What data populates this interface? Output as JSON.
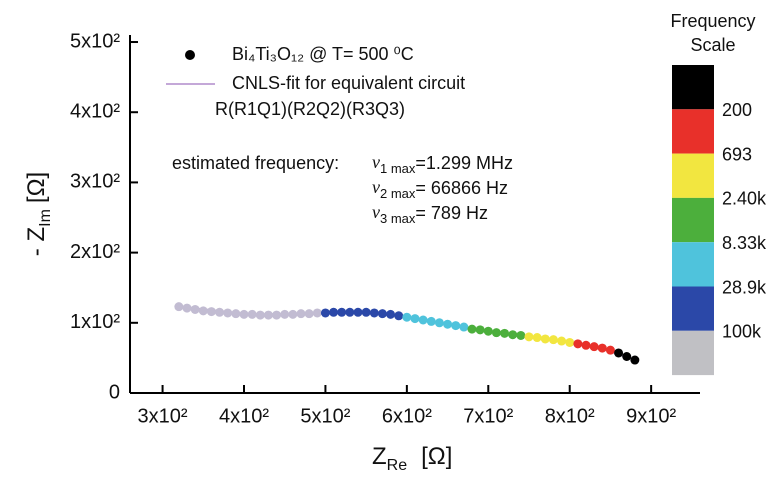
{
  "chart_data": {
    "type": "scatter",
    "xlabel": {
      "main": "Z",
      "sub": "Re",
      "unit": "[Ω]"
    },
    "ylabel": {
      "main": "- Z",
      "sub": "Im",
      "unit": "[Ω]"
    },
    "xlim": [
      260,
      960
    ],
    "ylim": [
      0,
      510
    ],
    "xticks": [
      {
        "value": 300,
        "label": "3x10²"
      },
      {
        "value": 400,
        "label": "4x10²"
      },
      {
        "value": 500,
        "label": "5x10²"
      },
      {
        "value": 600,
        "label": "6x10²"
      },
      {
        "value": 700,
        "label": "7x10²"
      },
      {
        "value": 800,
        "label": "8x10²"
      },
      {
        "value": 900,
        "label": "9x10²"
      }
    ],
    "yticks": [
      0,
      {
        "value": 100,
        "label": "1x10²"
      },
      {
        "value": 200,
        "label": "2x10²"
      },
      {
        "value": 300,
        "label": "3x10²"
      },
      {
        "value": 400,
        "label": "4x10²"
      },
      {
        "value": 500,
        "label": "5x10²"
      }
    ],
    "legend": {
      "marker_label": "Bi₄Ti₃O₁₂  @ T= 500 ⁰C",
      "line_label": "CNLS-fit for equivalent circuit",
      "circuit": "R(R1Q1)(R2Q2)(R3Q3)",
      "marker_color": "#000000"
    },
    "annotation": {
      "title": "estimated frequency:",
      "lines": [
        {
          "symbol": "ν",
          "sub": "1 max",
          "text": "=1.299 MHz"
        },
        {
          "symbol": "ν",
          "sub": "2 max",
          "text": "= 66866 Hz"
        },
        {
          "symbol": "ν",
          "sub": "3 max",
          "text": "=  789 Hz"
        }
      ]
    },
    "fit": {
      "color": "#c4a8d8",
      "x": [
        320,
        360,
        400,
        440,
        480,
        520,
        560,
        600,
        640,
        680,
        720,
        760,
        800,
        840,
        880
      ],
      "y": [
        123,
        118,
        113,
        111,
        112,
        114,
        114,
        108,
        100,
        91,
        86,
        78,
        72,
        63,
        47
      ]
    },
    "series": [
      {
        "color": "#c2bcd2",
        "x": [
          320,
          330,
          340,
          350,
          360,
          370,
          380,
          390,
          400,
          410,
          420,
          430,
          440,
          450,
          460,
          470,
          480,
          490
        ],
        "y": [
          123,
          121,
          119,
          117,
          116,
          115,
          114,
          113,
          112,
          112,
          111,
          111,
          111,
          112,
          112,
          113,
          113,
          114
        ]
      },
      {
        "color": "#2b48a8",
        "x": [
          500,
          510,
          520,
          530,
          540,
          550,
          560,
          570,
          580,
          590
        ],
        "y": [
          114,
          115,
          115,
          115,
          115,
          115,
          114,
          113,
          112,
          110
        ]
      },
      {
        "color": "#4fc3dc",
        "x": [
          600,
          610,
          620,
          630,
          640,
          650,
          660,
          670
        ],
        "y": [
          108,
          106,
          104,
          102,
          100,
          98,
          96,
          94
        ]
      },
      {
        "color": "#4caf3c",
        "x": [
          680,
          690,
          700,
          710,
          720,
          730,
          740
        ],
        "y": [
          91,
          90,
          88,
          86,
          85,
          83,
          82
        ]
      },
      {
        "color": "#f2e640",
        "x": [
          750,
          760,
          770,
          780,
          790,
          800
        ],
        "y": [
          80,
          79,
          77,
          76,
          74,
          72
        ]
      },
      {
        "color": "#e8302a",
        "x": [
          810,
          820,
          830,
          840,
          850
        ],
        "y": [
          70,
          68,
          66,
          64,
          61
        ]
      },
      {
        "color": "#000000",
        "x": [
          860,
          870,
          880
        ],
        "y": [
          57,
          52,
          47
        ]
      }
    ],
    "frequency_scale": {
      "title": [
        "Frequency",
        "Scale"
      ],
      "colors": [
        "#000000",
        "#e8302a",
        "#f2e640",
        "#4caf3c",
        "#4fc3dc",
        "#2b48a8",
        "#c0c0c4"
      ],
      "labels": [
        "200",
        "693",
        "2.40k",
        "8.33k",
        "28.9k",
        "100k"
      ]
    }
  }
}
